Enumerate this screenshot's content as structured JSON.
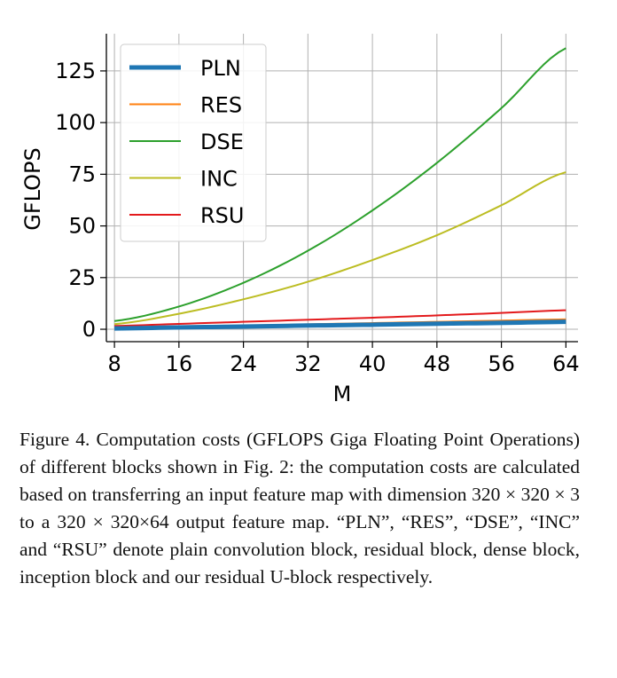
{
  "chart_data": {
    "type": "line",
    "title": "",
    "xlabel": "M",
    "ylabel": "GFLOPS",
    "xlim": [
      7,
      65.5
    ],
    "ylim": [
      -6,
      143
    ],
    "xticks": [
      8,
      16,
      24,
      32,
      40,
      48,
      56,
      64
    ],
    "yticks": [
      0,
      25,
      50,
      75,
      100,
      125
    ],
    "x": [
      8,
      16,
      24,
      32,
      40,
      48,
      56,
      64
    ],
    "grid": true,
    "legend_position": "top-left",
    "series": [
      {
        "name": "PLN",
        "color": "#1f77b4",
        "width": 5,
        "values": [
          0.4,
          0.9,
          1.3,
          1.8,
          2.2,
          2.7,
          3.1,
          3.6
        ]
      },
      {
        "name": "RES",
        "color": "#ff7f0e",
        "width": 2,
        "values": [
          0.6,
          1.2,
          1.8,
          2.4,
          3.0,
          3.6,
          4.2,
          4.8
        ]
      },
      {
        "name": "DSE",
        "color": "#2ca02c",
        "width": 2,
        "values": [
          4.0,
          11.0,
          22.5,
          38.0,
          57.5,
          80.5,
          107.0,
          136.0
        ]
      },
      {
        "name": "INC",
        "color": "#bcbd22",
        "width": 2,
        "values": [
          2.5,
          7.5,
          14.5,
          23.0,
          33.5,
          45.5,
          60.0,
          76.0
        ]
      },
      {
        "name": "RSU",
        "color": "#e31a1c",
        "width": 2,
        "values": [
          1.6,
          2.6,
          3.6,
          4.6,
          5.6,
          6.7,
          7.9,
          9.2
        ]
      }
    ]
  },
  "caption": "Figure 4. Computation costs (GFLOPS Giga Floating Point Operations) of different blocks shown in Fig. 2: the computation costs are calculated based on transferring an input feature map with dimension 320 × 320 × 3 to a 320 × 320×64 output feature map. “PLN”, “RES”, “DSE”, “INC” and “RSU” denote plain convolution block, residual block, dense block, inception block and our residual U-block respectively."
}
